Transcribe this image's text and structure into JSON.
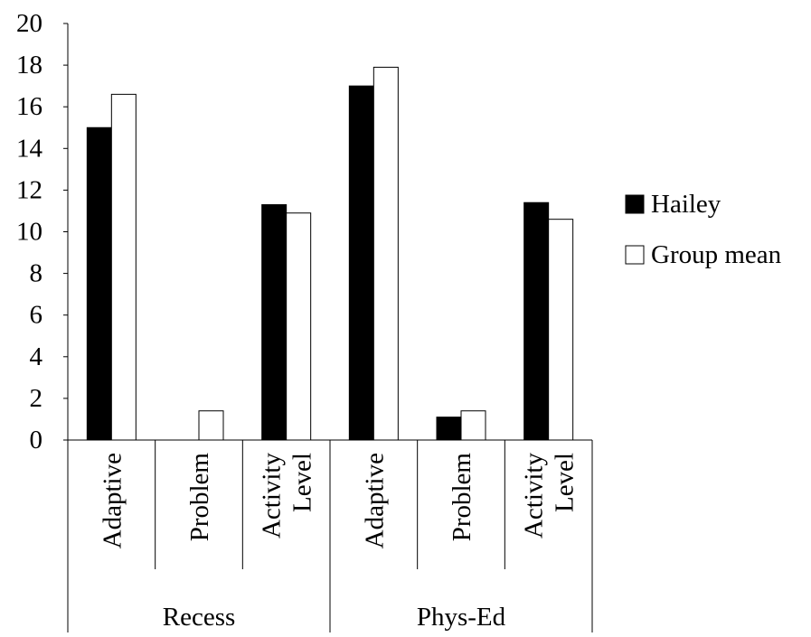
{
  "chart_data": {
    "type": "bar",
    "groups": [
      {
        "label": "Recess",
        "categories": [
          "Adaptive",
          "Problem",
          "Activity Level"
        ]
      },
      {
        "label": "Phys-Ed",
        "categories": [
          "Adaptive",
          "Problem",
          "Activity Level"
        ]
      }
    ],
    "series": [
      {
        "name": "Hailey",
        "color": "#000000",
        "values": [
          15,
          0,
          11.3,
          17,
          1.1,
          11.4
        ]
      },
      {
        "name": "Group mean",
        "color": "#ffffff",
        "values": [
          16.6,
          1.4,
          10.9,
          17.9,
          1.4,
          10.6
        ]
      }
    ],
    "ylim": [
      0,
      20
    ],
    "yticks": [
      "0",
      "2",
      "4",
      "6",
      "8",
      "10",
      "12",
      "14",
      "16",
      "18",
      "20"
    ],
    "legend_position": "right",
    "title": "",
    "xlabel": "",
    "ylabel": "",
    "grid": false
  }
}
